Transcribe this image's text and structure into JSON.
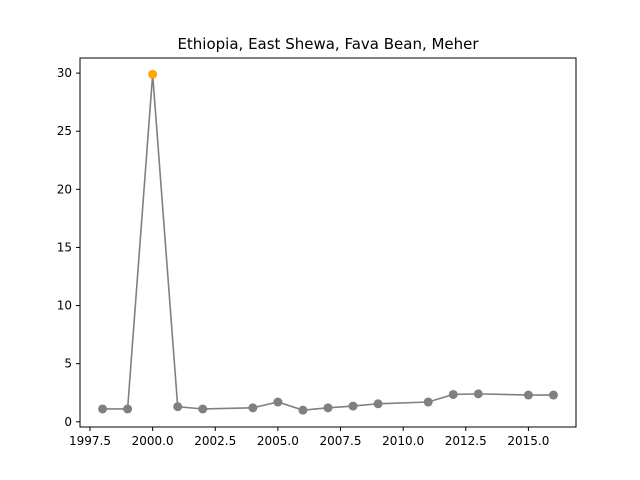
{
  "chart_data": {
    "type": "line",
    "title": "Ethiopia, East Shewa, Fava Bean, Meher",
    "xlabel": "",
    "ylabel": "",
    "xlim": [
      1997.1,
      2016.9
    ],
    "ylim": [
      -0.45,
      31.3
    ],
    "xticks": [
      {
        "value": 1997.5,
        "label": "1997.5"
      },
      {
        "value": 2000.0,
        "label": "2000.0"
      },
      {
        "value": 2002.5,
        "label": "2002.5"
      },
      {
        "value": 2005.0,
        "label": "2005.0"
      },
      {
        "value": 2007.5,
        "label": "2007.5"
      },
      {
        "value": 2010.0,
        "label": "2010.0"
      },
      {
        "value": 2012.5,
        "label": "2012.5"
      },
      {
        "value": 2015.0,
        "label": "2015.0"
      }
    ],
    "yticks": [
      {
        "value": 0,
        "label": "0"
      },
      {
        "value": 5,
        "label": "5"
      },
      {
        "value": 10,
        "label": "10"
      },
      {
        "value": 15,
        "label": "15"
      },
      {
        "value": 20,
        "label": "20"
      },
      {
        "value": 25,
        "label": "25"
      },
      {
        "value": 30,
        "label": "30"
      }
    ],
    "grid": false,
    "series": [
      {
        "color": "#808080",
        "highlight_color": "#ffa500",
        "x": [
          1998,
          1999,
          2000,
          2001,
          2002,
          2004,
          2005,
          2006,
          2007,
          2008,
          2009,
          2011,
          2012,
          2013,
          2015,
          2016
        ],
        "y": [
          1.1,
          1.1,
          29.9,
          1.3,
          1.1,
          1.2,
          1.7,
          1.0,
          1.2,
          1.35,
          1.55,
          1.7,
          2.35,
          2.4,
          2.3,
          2.3
        ],
        "highlight_index": 2
      }
    ]
  }
}
